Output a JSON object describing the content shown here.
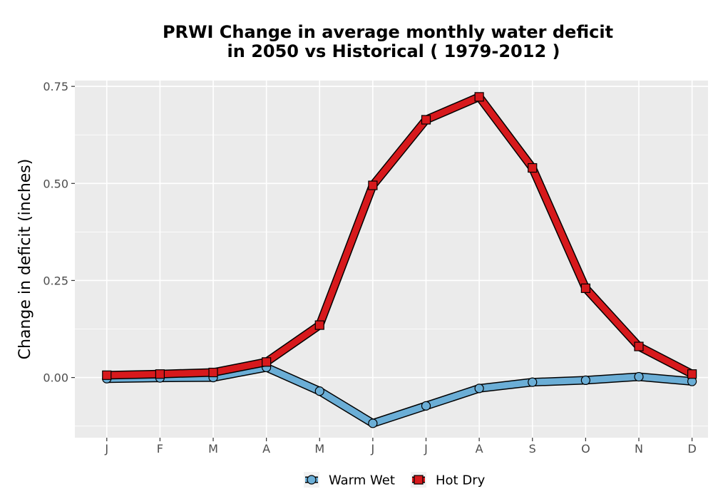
{
  "chart_data": {
    "type": "line",
    "title": [
      "PRWI  Change in average monthly water deficit",
      "in 2050 vs Historical ( 1979-2012 )"
    ],
    "xlabel": "",
    "ylabel": "Change in deficit (inches)",
    "categories": [
      "J",
      "F",
      "M",
      "A",
      "M",
      "J",
      "J",
      "A",
      "S",
      "O",
      "N",
      "D"
    ],
    "ylim": [
      -0.155,
      0.765
    ],
    "yticks": [
      0.0,
      0.25,
      0.5,
      0.75
    ],
    "ytick_labels": [
      "0.00",
      "0.25",
      "0.50",
      "0.75"
    ],
    "grid": true,
    "legend_position": "bottom",
    "series": [
      {
        "name": "Warm Wet",
        "marker": "circle",
        "color": "#6baed6",
        "values": [
          -0.003,
          -0.001,
          0.0,
          0.026,
          -0.035,
          -0.118,
          -0.073,
          -0.028,
          -0.012,
          -0.007,
          0.002,
          -0.01
        ]
      },
      {
        "name": "Hot Dry",
        "marker": "square",
        "color": "#d7191c",
        "values": [
          0.006,
          0.009,
          0.013,
          0.04,
          0.135,
          0.495,
          0.664,
          0.723,
          0.54,
          0.23,
          0.08,
          0.009
        ]
      }
    ]
  }
}
